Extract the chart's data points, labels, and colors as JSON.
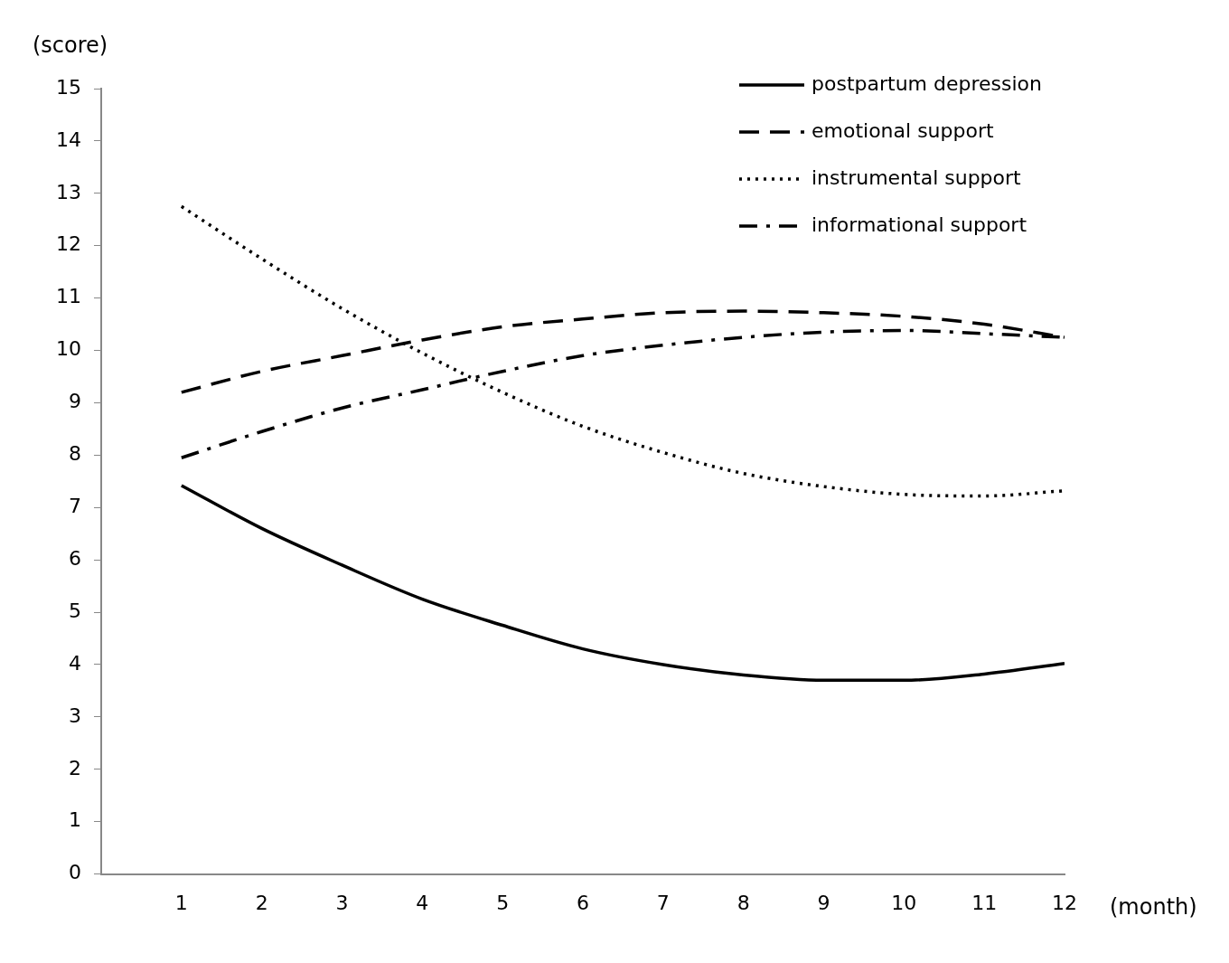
{
  "chart_data": {
    "type": "line",
    "xlabel": "(month)",
    "ylabel": "(score)",
    "x": [
      1,
      2,
      3,
      4,
      5,
      6,
      7,
      8,
      9,
      10,
      11,
      12
    ],
    "xlim": [
      0,
      12
    ],
    "xticks": [
      1,
      2,
      3,
      4,
      5,
      6,
      7,
      8,
      9,
      10,
      11,
      12
    ],
    "ylim": [
      0,
      15
    ],
    "yticks": [
      0,
      1,
      2,
      3,
      4,
      5,
      6,
      7,
      8,
      9,
      10,
      11,
      12,
      13,
      14,
      15
    ],
    "grid": false,
    "legend": "top right",
    "marker": "none",
    "series": [
      {
        "name": "postpartum depression",
        "color": "#000000",
        "line_style": "solid",
        "values": [
          7.42,
          6.6,
          5.9,
          5.25,
          4.75,
          4.3,
          4.0,
          3.8,
          3.7,
          3.7,
          3.82,
          4.02
        ]
      },
      {
        "name": "emotional support",
        "color": "#000000",
        "line_style": "dashed",
        "values": [
          9.2,
          9.6,
          9.9,
          10.2,
          10.45,
          10.6,
          10.72,
          10.75,
          10.72,
          10.65,
          10.5,
          10.25
        ]
      },
      {
        "name": "instrumental support",
        "color": "#000000",
        "line_style": "dotted",
        "values": [
          12.75,
          11.75,
          10.8,
          9.95,
          9.2,
          8.55,
          8.05,
          7.65,
          7.4,
          7.25,
          7.22,
          7.32
        ]
      },
      {
        "name": "informational support",
        "color": "#000000",
        "line_style": "dashdot",
        "values": [
          7.95,
          8.45,
          8.9,
          9.25,
          9.6,
          9.9,
          10.1,
          10.25,
          10.35,
          10.38,
          10.32,
          10.25
        ]
      }
    ]
  }
}
